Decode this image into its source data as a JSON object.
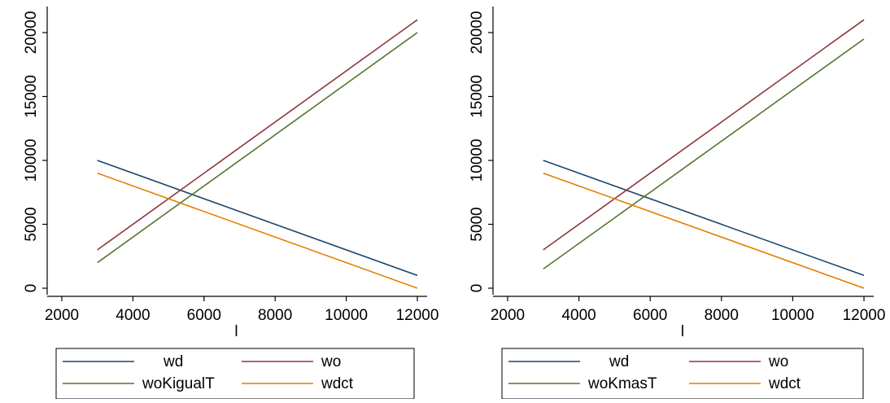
{
  "chart_data": [
    {
      "type": "line",
      "title": "",
      "xlabel": "l",
      "ylabel": "",
      "xlim": [
        2000,
        12000
      ],
      "ylim": [
        0,
        21000
      ],
      "x_ticks": [
        "2000",
        "4000",
        "6000",
        "8000",
        "10000",
        "12000"
      ],
      "y_ticks": [
        "0",
        "5000",
        "10000",
        "15000",
        "20000"
      ],
      "x_tick_values": [
        2000,
        4000,
        6000,
        8000,
        10000,
        12000
      ],
      "y_tick_values": [
        0,
        5000,
        10000,
        15000,
        20000
      ],
      "grid": false,
      "legend_position": "bottom",
      "series": [
        {
          "name": "wd",
          "color": "#1a476f",
          "x": [
            3000,
            12000
          ],
          "y": [
            10000,
            1000
          ]
        },
        {
          "name": "wo",
          "color": "#90353b",
          "x": [
            3000,
            12000
          ],
          "y": [
            3000,
            21000
          ]
        },
        {
          "name": "woKigualT",
          "color": "#55752f",
          "x": [
            3000,
            12000
          ],
          "y": [
            2000,
            20000
          ]
        },
        {
          "name": "wdct",
          "color": "#e37e00",
          "x": [
            3000,
            12000
          ],
          "y": [
            9000,
            0
          ]
        }
      ]
    },
    {
      "type": "line",
      "title": "",
      "xlabel": "l",
      "ylabel": "",
      "xlim": [
        2000,
        12000
      ],
      "ylim": [
        0,
        21000
      ],
      "x_ticks": [
        "2000",
        "4000",
        "6000",
        "8000",
        "10000",
        "12000"
      ],
      "y_ticks": [
        "0",
        "5000",
        "10000",
        "15000",
        "20000"
      ],
      "x_tick_values": [
        2000,
        4000,
        6000,
        8000,
        10000,
        12000
      ],
      "y_tick_values": [
        0,
        5000,
        10000,
        15000,
        20000
      ],
      "grid": false,
      "legend_position": "bottom",
      "series": [
        {
          "name": "wd",
          "color": "#1a476f",
          "x": [
            3000,
            12000
          ],
          "y": [
            10000,
            1000
          ]
        },
        {
          "name": "wo",
          "color": "#90353b",
          "x": [
            3000,
            12000
          ],
          "y": [
            3000,
            21000
          ]
        },
        {
          "name": "woKmasT",
          "color": "#55752f",
          "x": [
            3000,
            12000
          ],
          "y": [
            1500,
            19500
          ]
        },
        {
          "name": "wdct",
          "color": "#e37e00",
          "x": [
            3000,
            12000
          ],
          "y": [
            9000,
            0
          ]
        }
      ]
    }
  ]
}
